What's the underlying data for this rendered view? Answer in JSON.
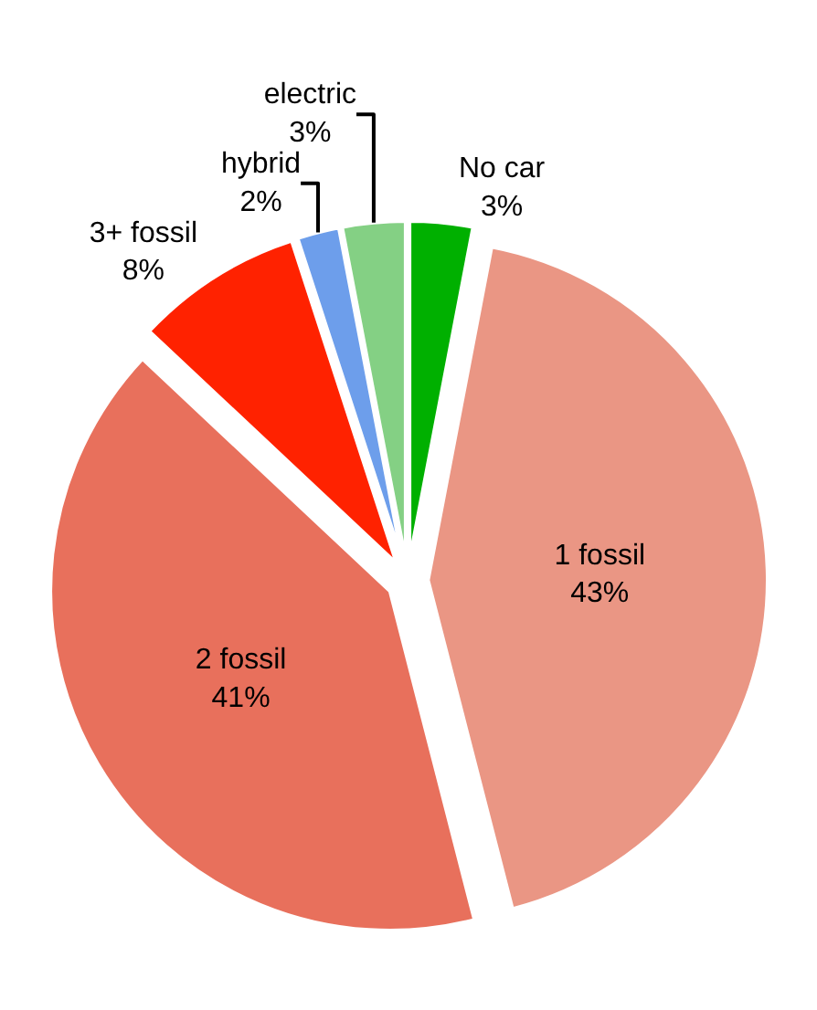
{
  "chart_data": {
    "type": "pie",
    "categories": [
      "No car",
      "1 fossil",
      "2 fossil",
      "3+ fossil",
      "hybrid",
      "electric"
    ],
    "values": [
      3,
      43,
      41,
      8,
      2,
      3
    ],
    "value_labels": [
      "3%",
      "43%",
      "41%",
      "8%",
      "2%",
      "3%"
    ],
    "colors": [
      "#00b000",
      "#ea9684",
      "#e8705c",
      "#ff2200",
      "#6d9eeb",
      "#84d084"
    ],
    "legend": false
  }
}
